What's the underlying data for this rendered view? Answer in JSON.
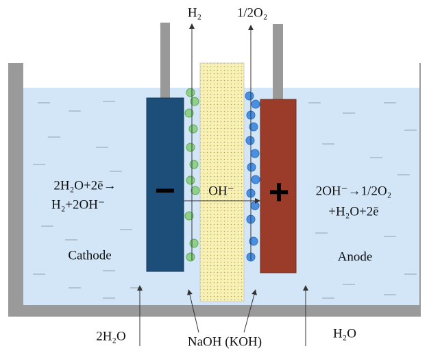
{
  "gases": {
    "cathode_gas": "H₂",
    "anode_gas": "1/2O₂"
  },
  "cathode": {
    "sign": "−",
    "reaction_line1": "2H₂O+2ē→",
    "reaction_line2": "H₂+2OH⁻",
    "label": "Cathode",
    "feed": "2H₂O"
  },
  "anode": {
    "sign": "+",
    "reaction_line1": "2OH⁻→1/2O₂",
    "reaction_line2": "+H₂O+2ē",
    "label": "Anode",
    "feed": "H₂O"
  },
  "separator": {
    "ion": "OH⁻"
  },
  "electrolyte": {
    "label": "NaOH (KOH)"
  }
}
